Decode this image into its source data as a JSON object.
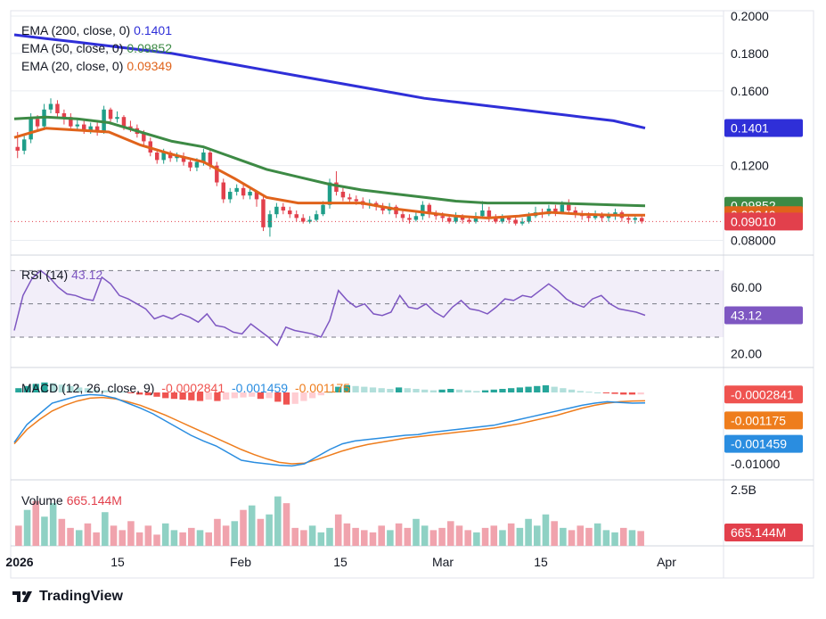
{
  "colors": {
    "ema200": "#2f2fd8",
    "ema50": "#3d8a45",
    "ema20": "#e0631b",
    "up": "#1f9e89",
    "down": "#e2404c",
    "up_vol": "#8fd1c4",
    "down_vol": "#f0a3ad",
    "rsi": "#7e57c2",
    "macd": "#2a8de0",
    "signal": "#ee7d1d",
    "hist_up_strong": "#26a69a",
    "hist_up_weak": "#b2dfdb",
    "hist_down_strong": "#ef5350",
    "hist_down_weak": "#ffcdd2",
    "grid": "#e9ecf1",
    "text": "#131722"
  },
  "brand": {
    "name": "TradingView"
  },
  "chart_data": [
    {
      "type": "candlestick",
      "pane": "price",
      "title": "",
      "x_labels": [
        "2026",
        "15",
        "Feb",
        "15",
        "Mar",
        "15",
        "Apr"
      ],
      "ylim": [
        0.075,
        0.2
      ],
      "y_ticks": [
        "0.2000",
        "0.1800",
        "0.1600",
        "0.1200",
        "0.08000"
      ],
      "series": [
        {
          "name": "EMA (200, close, 0)",
          "value": "0.1401",
          "points": [
            0.19,
            0.188,
            0.186,
            0.184,
            0.182,
            0.18,
            0.177,
            0.174,
            0.171,
            0.168,
            0.165,
            0.162,
            0.159,
            0.156,
            0.154,
            0.152,
            0.15,
            0.148,
            0.146,
            0.144,
            0.1401
          ]
        },
        {
          "name": "EMA (50, close, 0)",
          "value": "0.09852",
          "points": [
            0.145,
            0.146,
            0.145,
            0.143,
            0.138,
            0.133,
            0.13,
            0.124,
            0.118,
            0.114,
            0.11,
            0.107,
            0.105,
            0.103,
            0.101,
            0.1,
            0.1,
            0.1,
            0.0995,
            0.099,
            0.09852
          ]
        },
        {
          "name": "EMA (20, close, 0)",
          "value": "0.09349",
          "points": [
            0.135,
            0.14,
            0.139,
            0.138,
            0.131,
            0.126,
            0.122,
            0.113,
            0.103,
            0.1,
            0.1,
            0.1,
            0.097,
            0.095,
            0.093,
            0.092,
            0.093,
            0.095,
            0.094,
            0.0935,
            0.09349
          ]
        }
      ],
      "candles": [
        [
          0.13,
          0.128,
          0.138,
          0.124
        ],
        [
          0.128,
          0.134,
          0.136,
          0.126
        ],
        [
          0.134,
          0.145,
          0.148,
          0.132
        ],
        [
          0.145,
          0.141,
          0.147,
          0.139
        ],
        [
          0.141,
          0.15,
          0.153,
          0.139
        ],
        [
          0.15,
          0.153,
          0.156,
          0.148
        ],
        [
          0.153,
          0.148,
          0.155,
          0.146
        ],
        [
          0.148,
          0.146,
          0.15,
          0.142
        ],
        [
          0.146,
          0.141,
          0.148,
          0.14
        ],
        [
          0.141,
          0.142,
          0.145,
          0.139
        ],
        [
          0.142,
          0.139,
          0.144,
          0.137
        ],
        [
          0.139,
          0.141,
          0.143,
          0.137
        ],
        [
          0.141,
          0.138,
          0.143,
          0.136
        ],
        [
          0.138,
          0.15,
          0.152,
          0.137
        ],
        [
          0.15,
          0.145,
          0.151,
          0.142
        ],
        [
          0.145,
          0.146,
          0.149,
          0.143
        ],
        [
          0.146,
          0.141,
          0.147,
          0.139
        ],
        [
          0.141,
          0.14,
          0.144,
          0.138
        ],
        [
          0.14,
          0.137,
          0.142,
          0.135
        ],
        [
          0.137,
          0.133,
          0.139,
          0.131
        ],
        [
          0.133,
          0.127,
          0.135,
          0.125
        ],
        [
          0.127,
          0.123,
          0.129,
          0.121
        ],
        [
          0.123,
          0.127,
          0.129,
          0.121
        ],
        [
          0.127,
          0.124,
          0.128,
          0.122
        ],
        [
          0.124,
          0.125,
          0.127,
          0.122
        ],
        [
          0.125,
          0.122,
          0.127,
          0.12
        ],
        [
          0.122,
          0.119,
          0.124,
          0.117
        ],
        [
          0.119,
          0.122,
          0.124,
          0.117
        ],
        [
          0.122,
          0.127,
          0.129,
          0.12
        ],
        [
          0.127,
          0.12,
          0.129,
          0.118
        ],
        [
          0.12,
          0.111,
          0.122,
          0.109
        ],
        [
          0.111,
          0.102,
          0.113,
          0.1
        ],
        [
          0.102,
          0.106,
          0.108,
          0.1
        ],
        [
          0.106,
          0.108,
          0.11,
          0.104
        ],
        [
          0.108,
          0.104,
          0.11,
          0.102
        ],
        [
          0.104,
          0.106,
          0.108,
          0.102
        ],
        [
          0.106,
          0.102,
          0.107,
          0.098
        ],
        [
          0.102,
          0.087,
          0.104,
          0.085
        ],
        [
          0.087,
          0.094,
          0.096,
          0.082
        ],
        [
          0.094,
          0.098,
          0.1,
          0.092
        ],
        [
          0.098,
          0.096,
          0.1,
          0.094
        ],
        [
          0.096,
          0.094,
          0.098,
          0.092
        ],
        [
          0.094,
          0.092,
          0.096,
          0.09
        ],
        [
          0.092,
          0.09,
          0.094,
          0.089
        ],
        [
          0.09,
          0.091,
          0.093,
          0.089
        ],
        [
          0.091,
          0.094,
          0.096,
          0.09
        ],
        [
          0.094,
          0.099,
          0.101,
          0.093
        ],
        [
          0.099,
          0.111,
          0.113,
          0.097
        ],
        [
          0.111,
          0.106,
          0.117,
          0.104
        ],
        [
          0.106,
          0.103,
          0.108,
          0.101
        ],
        [
          0.103,
          0.102,
          0.105,
          0.1
        ],
        [
          0.102,
          0.101,
          0.104,
          0.099
        ],
        [
          0.101,
          0.099,
          0.103,
          0.097
        ],
        [
          0.099,
          0.1,
          0.102,
          0.097
        ],
        [
          0.1,
          0.098,
          0.101,
          0.096
        ],
        [
          0.098,
          0.096,
          0.1,
          0.094
        ],
        [
          0.096,
          0.098,
          0.1,
          0.094
        ],
        [
          0.098,
          0.094,
          0.099,
          0.092
        ],
        [
          0.094,
          0.092,
          0.096,
          0.09
        ],
        [
          0.092,
          0.091,
          0.094,
          0.089
        ],
        [
          0.091,
          0.093,
          0.095,
          0.09
        ],
        [
          0.093,
          0.099,
          0.101,
          0.091
        ],
        [
          0.099,
          0.094,
          0.1,
          0.092
        ],
        [
          0.094,
          0.093,
          0.096,
          0.091
        ],
        [
          0.093,
          0.092,
          0.095,
          0.09
        ],
        [
          0.092,
          0.09,
          0.094,
          0.089
        ],
        [
          0.09,
          0.093,
          0.095,
          0.089
        ],
        [
          0.093,
          0.091,
          0.094,
          0.089
        ],
        [
          0.091,
          0.09,
          0.093,
          0.089
        ],
        [
          0.09,
          0.093,
          0.095,
          0.089
        ],
        [
          0.093,
          0.096,
          0.101,
          0.092
        ],
        [
          0.096,
          0.092,
          0.098,
          0.09
        ],
        [
          0.092,
          0.09,
          0.094,
          0.089
        ],
        [
          0.09,
          0.092,
          0.094,
          0.089
        ],
        [
          0.092,
          0.091,
          0.093,
          0.089
        ],
        [
          0.091,
          0.089,
          0.093,
          0.088
        ],
        [
          0.089,
          0.09,
          0.092,
          0.088
        ],
        [
          0.09,
          0.093,
          0.095,
          0.089
        ],
        [
          0.093,
          0.095,
          0.098,
          0.092
        ],
        [
          0.095,
          0.094,
          0.097,
          0.092
        ],
        [
          0.094,
          0.097,
          0.099,
          0.093
        ],
        [
          0.097,
          0.095,
          0.099,
          0.093
        ],
        [
          0.095,
          0.099,
          0.101,
          0.094
        ],
        [
          0.099,
          0.096,
          0.102,
          0.095
        ],
        [
          0.096,
          0.094,
          0.098,
          0.092
        ],
        [
          0.094,
          0.093,
          0.096,
          0.091
        ],
        [
          0.093,
          0.092,
          0.095,
          0.09
        ],
        [
          0.092,
          0.094,
          0.096,
          0.091
        ],
        [
          0.094,
          0.092,
          0.095,
          0.09
        ],
        [
          0.092,
          0.093,
          0.095,
          0.09
        ],
        [
          0.093,
          0.095,
          0.097,
          0.091
        ],
        [
          0.095,
          0.092,
          0.096,
          0.09
        ],
        [
          0.092,
          0.091,
          0.094,
          0.089
        ],
        [
          0.091,
          0.092,
          0.093,
          0.089
        ],
        [
          0.092,
          0.0901,
          0.093,
          0.089
        ]
      ],
      "price_labels": [
        {
          "text": "0.1401",
          "color": "#2f2fd8",
          "value": 0.1401
        },
        {
          "text": "0.09852",
          "color": "#3d8a45",
          "value": 0.09852
        },
        {
          "text": "0.09349",
          "color": "#e0631b",
          "value": 0.09349
        },
        {
          "text": "0.09010",
          "color": "#e2404c",
          "value": 0.0901
        }
      ]
    },
    {
      "type": "line",
      "pane": "rsi",
      "name": "RSI (14)",
      "value": "43.12",
      "ylim": [
        15,
        75
      ],
      "band": [
        30,
        70
      ],
      "mid": 50,
      "y_ticks": [
        "60.00",
        "20.00"
      ],
      "values": [
        34,
        55,
        65,
        70,
        66,
        60,
        56,
        55,
        53,
        52,
        66,
        62,
        55,
        53,
        50,
        47,
        41,
        43,
        41,
        44,
        42,
        39,
        44,
        37,
        36,
        33,
        32,
        38,
        34,
        30,
        25,
        36,
        34,
        33,
        32,
        30,
        40,
        58,
        52,
        48,
        50,
        44,
        43,
        45,
        55,
        48,
        47,
        50,
        45,
        42,
        48,
        52,
        47,
        46,
        44,
        48,
        53,
        52,
        55,
        54,
        58,
        62,
        58,
        53,
        50,
        48,
        53,
        55,
        50,
        47,
        46,
        45,
        43.12
      ]
    },
    {
      "type": "line+bar",
      "pane": "macd",
      "name": "MACD (12, 26, close, 9)",
      "values_text": [
        "-0.0002841",
        "-0.001459",
        "-0.001175"
      ],
      "ylim": [
        -0.0115,
        0.0025
      ],
      "y_ticks": [
        "-0.01000"
      ],
      "histogram": [
        0.0006,
        0.0009,
        0.0012,
        0.0014,
        0.0013,
        0.0011,
        0.0009,
        0.0007,
        0.0006,
        0.0004,
        0.0003,
        0.0002,
        0.0001,
        -0.0001,
        -0.0003,
        -0.0004,
        -0.0006,
        -0.0008,
        -0.0009,
        -0.001,
        -0.0011,
        -0.0012,
        -0.001,
        -0.0012,
        -0.001,
        -0.0008,
        -0.0007,
        -0.0006,
        -0.0009,
        -0.0008,
        -0.0013,
        -0.0017,
        -0.0016,
        -0.0012,
        -0.0008,
        -0.0004,
        0.0001,
        0.0008,
        0.001,
        0.0009,
        0.0008,
        0.0007,
        0.0006,
        0.0005,
        0.0007,
        0.0006,
        0.0005,
        0.0004,
        0.0003,
        0.0004,
        0.0005,
        0.0004,
        0.0003,
        0.0002,
        0.0003,
        0.0004,
        0.0005,
        0.0006,
        0.0007,
        0.0008,
        0.0009,
        0.001,
        0.0008,
        0.0006,
        0.0004,
        0.0002,
        0.0001,
        0.0,
        -0.0001,
        -0.0002,
        -0.0003,
        -0.0003,
        -0.00028
      ],
      "macd": [
        -0.007,
        -0.0045,
        -0.003,
        -0.0015,
        -0.001,
        -0.0005,
        -0.0003,
        -0.0004,
        -0.0008,
        -0.0015,
        -0.0022,
        -0.003,
        -0.004,
        -0.005,
        -0.006,
        -0.0068,
        -0.0075,
        -0.0085,
        -0.0095,
        -0.0098,
        -0.01,
        -0.0102,
        -0.0103,
        -0.01,
        -0.009,
        -0.008,
        -0.0072,
        -0.0068,
        -0.0066,
        -0.0064,
        -0.0062,
        -0.006,
        -0.0059,
        -0.0056,
        -0.0054,
        -0.0052,
        -0.005,
        -0.0048,
        -0.0046,
        -0.0042,
        -0.0038,
        -0.0034,
        -0.003,
        -0.0026,
        -0.0022,
        -0.0018,
        -0.0015,
        -0.0013,
        -0.0014,
        -0.0015,
        -0.001459
      ],
      "signal": [
        -0.0072,
        -0.0052,
        -0.0038,
        -0.0026,
        -0.0018,
        -0.0012,
        -0.0008,
        -0.0007,
        -0.0009,
        -0.0013,
        -0.0018,
        -0.0025,
        -0.0032,
        -0.004,
        -0.0048,
        -0.0056,
        -0.0064,
        -0.0072,
        -0.008,
        -0.0087,
        -0.0093,
        -0.0098,
        -0.01,
        -0.0099,
        -0.0094,
        -0.0088,
        -0.0082,
        -0.0077,
        -0.0073,
        -0.007,
        -0.0067,
        -0.0064,
        -0.0062,
        -0.006,
        -0.0058,
        -0.0056,
        -0.0054,
        -0.0052,
        -0.005,
        -0.0047,
        -0.0044,
        -0.004,
        -0.0036,
        -0.0032,
        -0.0027,
        -0.0022,
        -0.0018,
        -0.0015,
        -0.0013,
        -0.0012,
        -0.001175
      ],
      "labels": [
        {
          "text": "-0.0002841",
          "color": "#ef5350",
          "value": -0.0002841
        },
        {
          "text": "-0.001175",
          "color": "#ee7d1d",
          "value": -0.001175
        },
        {
          "text": "-0.001459",
          "color": "#2a8de0",
          "value": -0.001459
        }
      ]
    },
    {
      "type": "bar",
      "pane": "volume",
      "name": "Volume",
      "value": "665.144M",
      "ylim": [
        0,
        2.7
      ],
      "y_ticks": [
        "2.5B"
      ],
      "label_text": "665.144M"
    }
  ]
}
